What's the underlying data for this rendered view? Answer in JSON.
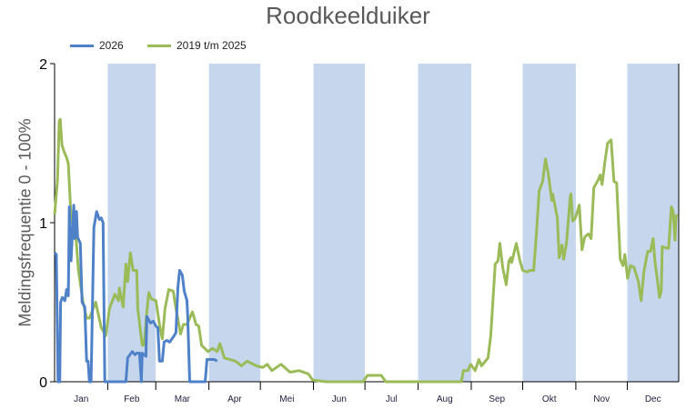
{
  "chart_data": {
    "type": "line",
    "title": "Roodkeelduiker",
    "xlabel": "",
    "ylabel": "Meldingsfrequentie 0 - 100%",
    "ylim": [
      0,
      2
    ],
    "yticks": [
      "0",
      "1",
      "2"
    ],
    "xlim_days": [
      1,
      365
    ],
    "months": [
      "Jan",
      "Feb",
      "Mar",
      "Apr",
      "Mei",
      "Jun",
      "Jul",
      "Aug",
      "Sep",
      "Okt",
      "Nov",
      "Dec"
    ],
    "shaded_months": [
      "Feb",
      "Apr",
      "Jun",
      "Aug",
      "Okt",
      "Dec"
    ],
    "shade_color": "#c6d7ed",
    "legend_placement": "top-left",
    "series": [
      {
        "name": "2026",
        "color": "#4f81c9",
        "points": [
          [
            1,
            0.81
          ],
          [
            2,
            0.8
          ],
          [
            3,
            0
          ],
          [
            4,
            0
          ],
          [
            4.5,
            0.5
          ],
          [
            5.5,
            0.53
          ],
          [
            7,
            0.51
          ],
          [
            8,
            0.58
          ],
          [
            9,
            0.54
          ],
          [
            9.6,
            1.1
          ],
          [
            10.6,
            0.76
          ],
          [
            12.2,
            1.11
          ],
          [
            12.8,
            0.9
          ],
          [
            13.8,
            1.07
          ],
          [
            14.4,
            0.91
          ],
          [
            16,
            0.87
          ],
          [
            17,
            0.5
          ],
          [
            18.6,
            0.47
          ],
          [
            19.7,
            0.13
          ],
          [
            20.5,
            0.13
          ],
          [
            21.3,
            0
          ],
          [
            22.3,
            0
          ],
          [
            23.9,
            0.97
          ],
          [
            25.5,
            1.07
          ],
          [
            27.1,
            1.02
          ],
          [
            28.2,
            1.03
          ],
          [
            29.3,
            1.0
          ],
          [
            30.3,
            0
          ],
          [
            42.6,
            0
          ],
          [
            43.6,
            0.15
          ],
          [
            46.3,
            0.19
          ],
          [
            47.9,
            0.17
          ],
          [
            48.9,
            0.18
          ],
          [
            50.5,
            0.18
          ],
          [
            51.6,
            0
          ],
          [
            52.1,
            0.18
          ],
          [
            54.3,
            0.16
          ],
          [
            54.8,
            0.41
          ],
          [
            56.9,
            0.37
          ],
          [
            58.5,
            0.38
          ],
          [
            60.1,
            0.35
          ],
          [
            61.2,
            0.34
          ],
          [
            62.2,
            0.13
          ],
          [
            63.8,
            0.13
          ],
          [
            64.9,
            0.25
          ],
          [
            66.5,
            0.26
          ],
          [
            68.1,
            0.25
          ],
          [
            70.8,
            0.29
          ],
          [
            71.8,
            0.31
          ],
          [
            72.9,
            0.59
          ],
          [
            73.9,
            0.7
          ],
          [
            75.5,
            0.67
          ],
          [
            76.6,
            0.57
          ],
          [
            78.2,
            0.51
          ],
          [
            78.7,
            0.4
          ],
          [
            79.8,
            0
          ],
          [
            88.8,
            0
          ],
          [
            89.9,
            0.14
          ],
          [
            92,
            0.14
          ],
          [
            94.2,
            0.14
          ],
          [
            95.8,
            0.13
          ]
        ]
      },
      {
        "name": "2019 t/m 2025",
        "color": "#9bbb59",
        "points": [
          [
            1,
            1.05
          ],
          [
            2.7,
            1.27
          ],
          [
            3.7,
            1.64
          ],
          [
            4.3,
            1.65
          ],
          [
            5.3,
            1.49
          ],
          [
            6.4,
            1.45
          ],
          [
            8,
            1.41
          ],
          [
            9,
            1.37
          ],
          [
            10.6,
            1.03
          ],
          [
            13.3,
            0.93
          ],
          [
            14.9,
            0.7
          ],
          [
            17.6,
            0.5
          ],
          [
            19.7,
            0.4
          ],
          [
            21.3,
            0.4
          ],
          [
            25,
            0.5
          ],
          [
            28.2,
            0.34
          ],
          [
            30.9,
            0.29
          ],
          [
            33,
            0.46
          ],
          [
            36.2,
            0.55
          ],
          [
            38.3,
            0.51
          ],
          [
            38.8,
            0.59
          ],
          [
            41,
            0.47
          ],
          [
            42.6,
            0.74
          ],
          [
            43.6,
            0.63
          ],
          [
            45.2,
            0.81
          ],
          [
            46.8,
            0.7
          ],
          [
            48.9,
            0.7
          ],
          [
            49.5,
            0.46
          ],
          [
            52.1,
            0.23
          ],
          [
            53.2,
            0.23
          ],
          [
            54.8,
            0.44
          ],
          [
            55.9,
            0.56
          ],
          [
            57.5,
            0.52
          ],
          [
            60.1,
            0.51
          ],
          [
            62.2,
            0.36
          ],
          [
            63.8,
            0.27
          ],
          [
            65.4,
            0.46
          ],
          [
            67.6,
            0.58
          ],
          [
            70.2,
            0.57
          ],
          [
            71.8,
            0.46
          ],
          [
            74.5,
            0.3
          ],
          [
            76.1,
            0.36
          ],
          [
            78.2,
            0.36
          ],
          [
            81.4,
            0.44
          ],
          [
            83.5,
            0.36
          ],
          [
            85.1,
            0.35
          ],
          [
            86.7,
            0.23
          ],
          [
            90.4,
            0.19
          ],
          [
            93.1,
            0.21
          ],
          [
            95.8,
            0.19
          ],
          [
            97.4,
            0.24
          ],
          [
            100,
            0.15
          ],
          [
            106.4,
            0.13
          ],
          [
            110.1,
            0.1
          ],
          [
            113.3,
            0.13
          ],
          [
            118.6,
            0.1
          ],
          [
            122.4,
            0.09
          ],
          [
            125,
            0.11
          ],
          [
            127.7,
            0.07
          ],
          [
            133,
            0.11
          ],
          [
            138.3,
            0.06
          ],
          [
            143.6,
            0.07
          ],
          [
            149,
            0.05
          ],
          [
            151.6,
            0.01
          ],
          [
            159.6,
            0
          ],
          [
            180.9,
            0
          ],
          [
            183.5,
            0.04
          ],
          [
            191.5,
            0.04
          ],
          [
            194.2,
            0
          ],
          [
            238.3,
            0
          ],
          [
            239.4,
            0.07
          ],
          [
            242,
            0.07
          ],
          [
            243.7,
            0.11
          ],
          [
            246.3,
            0.07
          ],
          [
            248.4,
            0.14
          ],
          [
            250,
            0.1
          ],
          [
            253.8,
            0.15
          ],
          [
            255.4,
            0.29
          ],
          [
            258,
            0.74
          ],
          [
            259.6,
            0.76
          ],
          [
            260.7,
            0.87
          ],
          [
            262.3,
            0.72
          ],
          [
            264.4,
            0.61
          ],
          [
            266,
            0.76
          ],
          [
            267.1,
            0.78
          ],
          [
            267.6,
            0.75
          ],
          [
            270.3,
            0.87
          ],
          [
            272.4,
            0.76
          ],
          [
            274,
            0.7
          ],
          [
            276.6,
            0.69
          ],
          [
            278.2,
            0.7
          ],
          [
            280.4,
            0.7
          ],
          [
            282,
            0.93
          ],
          [
            283.6,
            1.2
          ],
          [
            285.7,
            1.26
          ],
          [
            287.3,
            1.4
          ],
          [
            288.9,
            1.31
          ],
          [
            291,
            1.14
          ],
          [
            291.5,
            1.18
          ],
          [
            294.2,
            1.03
          ],
          [
            295.3,
            0.78
          ],
          [
            296.9,
            0.86
          ],
          [
            297.9,
            0.77
          ],
          [
            299.5,
            0.87
          ],
          [
            301.7,
            1.16
          ],
          [
            302.2,
            1.18
          ],
          [
            303.2,
            1.01
          ],
          [
            304.8,
            1.03
          ],
          [
            307,
            1.11
          ],
          [
            308.6,
            0.83
          ],
          [
            310.2,
            0.91
          ],
          [
            312.3,
            0.93
          ],
          [
            313.9,
            0.9
          ],
          [
            315.5,
            1.22
          ],
          [
            317.6,
            1.26
          ],
          [
            319.2,
            1.3
          ],
          [
            320.3,
            1.24
          ],
          [
            321.9,
            1.38
          ],
          [
            323.5,
            1.5
          ],
          [
            325.6,
            1.52
          ],
          [
            327.2,
            1.26
          ],
          [
            328.8,
            1.25
          ],
          [
            330.9,
            0.77
          ],
          [
            332.5,
            0.73
          ],
          [
            333.6,
            0.8
          ],
          [
            335.2,
            0.65
          ],
          [
            336.8,
            0.73
          ],
          [
            338.9,
            0.72
          ],
          [
            341.5,
            0.63
          ],
          [
            343.1,
            0.51
          ],
          [
            344.7,
            0.69
          ],
          [
            346.9,
            0.82
          ],
          [
            348.5,
            0.82
          ],
          [
            350.1,
            0.9
          ],
          [
            351.1,
            0.76
          ],
          [
            352.7,
            0.63
          ],
          [
            353.8,
            0.53
          ],
          [
            354.8,
            0.57
          ],
          [
            355.4,
            0.85
          ],
          [
            358,
            0.84
          ],
          [
            359.1,
            0.84
          ],
          [
            360.7,
            1.1
          ],
          [
            361.8,
            1.07
          ],
          [
            362.8,
            0.89
          ],
          [
            363.4,
            1.04
          ],
          [
            364.4,
            1.05
          ]
        ]
      }
    ]
  }
}
